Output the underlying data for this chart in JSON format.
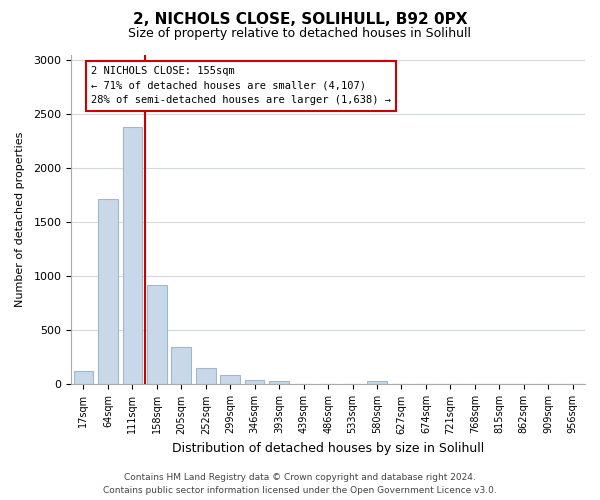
{
  "title": "2, NICHOLS CLOSE, SOLIHULL, B92 0PX",
  "subtitle": "Size of property relative to detached houses in Solihull",
  "xlabel": "Distribution of detached houses by size in Solihull",
  "ylabel": "Number of detached properties",
  "bar_labels": [
    "17sqm",
    "64sqm",
    "111sqm",
    "158sqm",
    "205sqm",
    "252sqm",
    "299sqm",
    "346sqm",
    "393sqm",
    "439sqm",
    "486sqm",
    "533sqm",
    "580sqm",
    "627sqm",
    "674sqm",
    "721sqm",
    "768sqm",
    "815sqm",
    "862sqm",
    "909sqm",
    "956sqm"
  ],
  "bar_values": [
    120,
    1720,
    2380,
    920,
    345,
    155,
    85,
    45,
    30,
    5,
    0,
    0,
    30,
    0,
    0,
    0,
    0,
    0,
    0,
    0,
    0
  ],
  "bar_color": "#c8d8e8",
  "bar_edge_color": "#a0b8cc",
  "vline_x": 2.5,
  "vline_color": "#cc0000",
  "annotation_title": "2 NICHOLS CLOSE: 155sqm",
  "annotation_line1": "← 71% of detached houses are smaller (4,107)",
  "annotation_line2": "28% of semi-detached houses are larger (1,638) →",
  "annotation_box_color": "#ffffff",
  "annotation_box_edge": "#cc0000",
  "ylim": [
    0,
    3050
  ],
  "yticks": [
    0,
    500,
    1000,
    1500,
    2000,
    2500,
    3000
  ],
  "footer_line1": "Contains HM Land Registry data © Crown copyright and database right 2024.",
  "footer_line2": "Contains public sector information licensed under the Open Government Licence v3.0.",
  "bg_color": "#ffffff",
  "grid_color": "#d0d8e0"
}
